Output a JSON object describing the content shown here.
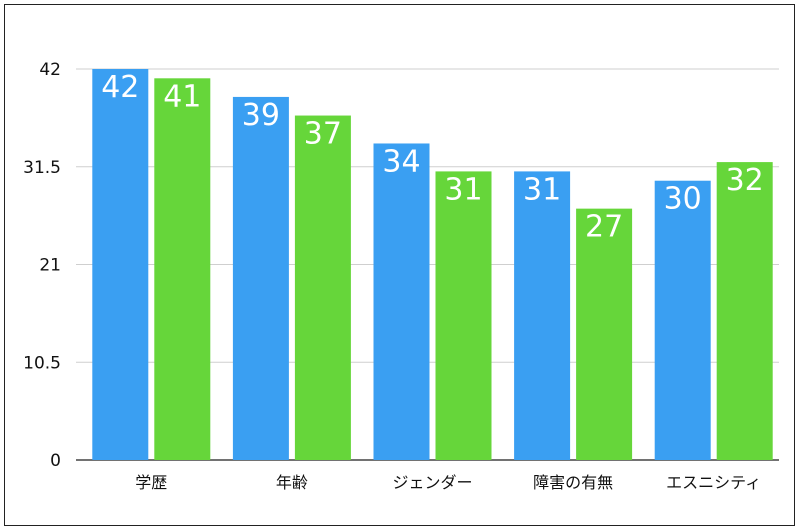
{
  "chart_data": {
    "type": "bar",
    "title": "",
    "xlabel": "",
    "ylabel": "",
    "categories": [
      "学歴",
      "年齢",
      "ジェンダー",
      "障害の有無",
      "エスニシティ"
    ],
    "series": [
      {
        "values": [
          42,
          39,
          34,
          31,
          30
        ],
        "color": "#3a9ff2"
      },
      {
        "values": [
          41,
          37,
          31,
          27,
          32
        ],
        "color": "#66d63a"
      }
    ],
    "ylim": [
      0,
      42
    ],
    "yticks": [
      0,
      10.5,
      21,
      31.5,
      42
    ],
    "ytick_labels": [
      "0",
      "10.5",
      "21",
      "31.5",
      "42"
    ],
    "grid": true,
    "legend": "none",
    "data_labels": true,
    "label_color": "#ffffff",
    "grid_color": "#cfcfcf"
  }
}
